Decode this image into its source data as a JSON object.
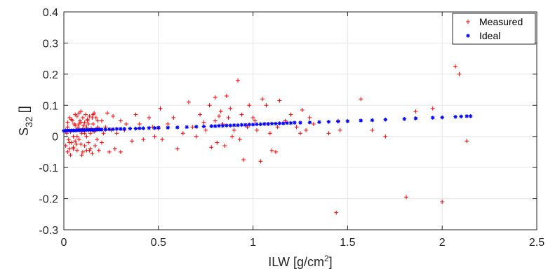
{
  "chart_data": {
    "type": "scatter",
    "title": "",
    "xlabel": {
      "main": "ILW [g/cm",
      "sup": "2",
      "tail": "]"
    },
    "ylabel": {
      "main": "S",
      "sub": "32",
      "tail": " []"
    },
    "xlim": [
      0,
      2.5
    ],
    "ylim": [
      -0.3,
      0.4
    ],
    "xticks": [
      0,
      0.5,
      1,
      1.5,
      2,
      2.5
    ],
    "yticks": [
      -0.3,
      -0.2,
      -0.1,
      0,
      0.1,
      0.2,
      0.3,
      0.4
    ],
    "xtick_labels": [
      "0",
      "0.5",
      "1",
      "1.5",
      "2",
      "2.5"
    ],
    "ytick_labels": [
      "-0.3",
      "-0.2",
      "-0.1",
      "0",
      "0.1",
      "0.2",
      "0.3",
      "0.4"
    ],
    "grid": true,
    "legend_position": "top-right",
    "series": [
      {
        "name": "Measured",
        "marker": "plus",
        "color": "#ff0000",
        "points": [
          [
            0.01,
            0.02
          ],
          [
            0.01,
            -0.03
          ],
          [
            0.015,
            0.01
          ],
          [
            0.02,
            -0.05
          ],
          [
            0.02,
            0.03
          ],
          [
            0.025,
            -0.01
          ],
          [
            0.03,
            0.06
          ],
          [
            0.03,
            -0.04
          ],
          [
            0.035,
            0.015
          ],
          [
            0.04,
            -0.02
          ],
          [
            0.045,
            0.05
          ],
          [
            0.05,
            0.0
          ],
          [
            0.05,
            -0.035
          ],
          [
            0.055,
            0.04
          ],
          [
            0.06,
            0.07
          ],
          [
            0.06,
            -0.015
          ],
          [
            0.065,
            0.02
          ],
          [
            0.07,
            0.065
          ],
          [
            0.07,
            -0.045
          ],
          [
            0.075,
            0.03
          ],
          [
            0.08,
            0.075
          ],
          [
            0.08,
            -0.01
          ],
          [
            0.085,
            0.05
          ],
          [
            0.09,
            0.08
          ],
          [
            0.09,
            -0.025
          ],
          [
            0.095,
            0.01
          ],
          [
            0.1,
            0.06
          ],
          [
            0.1,
            -0.05
          ],
          [
            0.105,
            0.035
          ],
          [
            0.11,
            0.045
          ],
          [
            0.11,
            -0.03
          ],
          [
            0.115,
            0.07
          ],
          [
            0.12,
            0.0
          ],
          [
            0.12,
            -0.045
          ],
          [
            0.125,
            0.05
          ],
          [
            0.13,
            0.02
          ],
          [
            0.13,
            -0.02
          ],
          [
            0.135,
            0.065
          ],
          [
            0.14,
            -0.04
          ],
          [
            0.145,
            0.025
          ],
          [
            0.15,
            -0.055
          ],
          [
            0.155,
            0.04
          ],
          [
            0.16,
            0.015
          ],
          [
            0.165,
            -0.03
          ],
          [
            0.17,
            0.06
          ],
          [
            0.175,
            -0.01
          ],
          [
            0.18,
            0.03
          ],
          [
            0.185,
            -0.045
          ],
          [
            0.02,
            0.045
          ],
          [
            0.04,
            0.055
          ],
          [
            0.06,
            0.035
          ],
          [
            0.08,
            0.04
          ],
          [
            0.1,
            0.025
          ],
          [
            0.12,
            0.03
          ],
          [
            0.14,
            0.01
          ],
          [
            0.03,
            -0.02
          ],
          [
            0.05,
            -0.04
          ],
          [
            0.07,
            0.0
          ],
          [
            0.09,
            0.045
          ],
          [
            0.11,
            0.01
          ],
          [
            0.13,
            0.04
          ],
          [
            0.15,
            0.06
          ],
          [
            0.17,
            0.02
          ],
          [
            0.2,
            0.05
          ],
          [
            0.2,
            -0.02
          ],
          [
            0.22,
            0.03
          ],
          [
            0.23,
            0.075
          ],
          [
            0.24,
            -0.05
          ],
          [
            0.25,
            0.02
          ],
          [
            0.26,
            0.065
          ],
          [
            0.27,
            -0.04
          ],
          [
            0.28,
            0.01
          ],
          [
            0.3,
            0.05
          ],
          [
            0.3,
            -0.05
          ],
          [
            0.32,
            0.02
          ],
          [
            0.36,
            -0.015
          ],
          [
            0.38,
            0.07
          ],
          [
            0.4,
            0.04
          ],
          [
            0.42,
            -0.01
          ],
          [
            0.45,
            0.06
          ],
          [
            0.47,
            0.03
          ],
          [
            0.5,
            0.025
          ],
          [
            0.51,
            0.09
          ],
          [
            0.52,
            -0.01
          ],
          [
            0.55,
            0.04
          ],
          [
            0.6,
            -0.04
          ],
          [
            0.63,
            0.01
          ],
          [
            0.66,
            0.11
          ],
          [
            0.68,
            0.03
          ],
          [
            0.7,
            0.0
          ],
          [
            0.72,
            0.07
          ],
          [
            0.75,
            0.02
          ],
          [
            0.77,
            0.1
          ],
          [
            0.78,
            -0.035
          ],
          [
            0.8,
            0.125
          ],
          [
            0.8,
            0.05
          ],
          [
            0.81,
            -0.02
          ],
          [
            0.82,
            0.065
          ],
          [
            0.83,
            0.08
          ],
          [
            0.84,
            0.04
          ],
          [
            0.85,
            -0.03
          ],
          [
            0.86,
            0.13
          ],
          [
            0.87,
            0.06
          ],
          [
            0.88,
            0.09
          ],
          [
            0.9,
            0.02
          ],
          [
            0.92,
            0.18
          ],
          [
            0.93,
            -0.01
          ],
          [
            0.94,
            0.07
          ],
          [
            0.95,
            -0.075
          ],
          [
            0.97,
            0.03
          ],
          [
            0.98,
            0.1
          ],
          [
            1.0,
            0.06
          ],
          [
            1.02,
            0.02
          ],
          [
            1.04,
            -0.08
          ],
          [
            1.05,
            0.12
          ],
          [
            1.07,
            0.1
          ],
          [
            1.08,
            0.04
          ],
          [
            1.09,
            0.01
          ],
          [
            1.1,
            -0.045
          ],
          [
            1.12,
            -0.05
          ],
          [
            1.14,
            0.115
          ],
          [
            1.17,
            0.05
          ],
          [
            1.2,
            0.07
          ],
          [
            1.23,
            0.03
          ],
          [
            1.26,
            0.085
          ],
          [
            1.28,
            0.02
          ],
          [
            1.3,
            0.06
          ],
          [
            1.32,
            0.04
          ],
          [
            1.4,
            0.01
          ],
          [
            1.44,
            -0.245
          ],
          [
            1.45,
            0.05
          ],
          [
            1.46,
            0.02
          ],
          [
            1.57,
            0.12
          ],
          [
            1.63,
            0.02
          ],
          [
            1.7,
            0.0
          ],
          [
            1.81,
            -0.195
          ],
          [
            1.86,
            0.08
          ],
          [
            1.95,
            0.09
          ],
          [
            2.0,
            -0.21
          ],
          [
            2.07,
            0.225
          ],
          [
            2.09,
            0.2
          ],
          [
            2.13,
            -0.015
          ],
          [
            0.16,
            0.075
          ],
          [
            0.18,
            0.05
          ],
          [
            0.21,
            0.01
          ],
          [
            0.33,
            0.04
          ],
          [
            0.48,
            0.0
          ],
          [
            0.58,
            0.06
          ],
          [
            0.74,
            0.045
          ],
          [
            0.89,
            0.0
          ],
          [
            1.01,
            0.05
          ],
          [
            1.13,
            0.03
          ],
          [
            1.25,
            0.01
          ],
          [
            0.035,
            -0.06
          ],
          [
            0.095,
            -0.06
          ],
          [
            0.135,
            -0.045
          ],
          [
            0.155,
            0.07
          ],
          [
            0.085,
            0.02
          ],
          [
            0.065,
            -0.025
          ],
          [
            0.125,
            0.055
          ]
        ]
      },
      {
        "name": "Ideal",
        "marker": "asterisk",
        "color": "#0000ff",
        "points": [
          [
            0.0,
            0.018
          ],
          [
            0.01,
            0.018
          ],
          [
            0.02,
            0.019
          ],
          [
            0.03,
            0.019
          ],
          [
            0.04,
            0.019
          ],
          [
            0.05,
            0.019
          ],
          [
            0.06,
            0.019
          ],
          [
            0.07,
            0.02
          ],
          [
            0.08,
            0.02
          ],
          [
            0.09,
            0.02
          ],
          [
            0.1,
            0.02
          ],
          [
            0.11,
            0.02
          ],
          [
            0.12,
            0.021
          ],
          [
            0.13,
            0.021
          ],
          [
            0.14,
            0.021
          ],
          [
            0.15,
            0.021
          ],
          [
            0.16,
            0.021
          ],
          [
            0.17,
            0.022
          ],
          [
            0.18,
            0.022
          ],
          [
            0.19,
            0.022
          ],
          [
            0.2,
            0.022
          ],
          [
            0.22,
            0.022
          ],
          [
            0.24,
            0.023
          ],
          [
            0.26,
            0.023
          ],
          [
            0.28,
            0.024
          ],
          [
            0.3,
            0.024
          ],
          [
            0.32,
            0.024
          ],
          [
            0.35,
            0.025
          ],
          [
            0.38,
            0.025
          ],
          [
            0.4,
            0.026
          ],
          [
            0.42,
            0.026
          ],
          [
            0.45,
            0.027
          ],
          [
            0.48,
            0.027
          ],
          [
            0.5,
            0.028
          ],
          [
            0.55,
            0.028
          ],
          [
            0.6,
            0.029
          ],
          [
            0.65,
            0.03
          ],
          [
            0.7,
            0.031
          ],
          [
            0.74,
            0.032
          ],
          [
            0.78,
            0.033
          ],
          [
            0.8,
            0.033
          ],
          [
            0.82,
            0.034
          ],
          [
            0.84,
            0.034
          ],
          [
            0.86,
            0.035
          ],
          [
            0.88,
            0.035
          ],
          [
            0.9,
            0.036
          ],
          [
            0.92,
            0.036
          ],
          [
            0.94,
            0.037
          ],
          [
            0.96,
            0.037
          ],
          [
            0.98,
            0.038
          ],
          [
            1.0,
            0.038
          ],
          [
            1.02,
            0.039
          ],
          [
            1.04,
            0.039
          ],
          [
            1.06,
            0.04
          ],
          [
            1.08,
            0.04
          ],
          [
            1.1,
            0.041
          ],
          [
            1.12,
            0.041
          ],
          [
            1.14,
            0.042
          ],
          [
            1.16,
            0.042
          ],
          [
            1.18,
            0.043
          ],
          [
            1.2,
            0.043
          ],
          [
            1.22,
            0.044
          ],
          [
            1.25,
            0.044
          ],
          [
            1.3,
            0.045
          ],
          [
            1.35,
            0.046
          ],
          [
            1.4,
            0.047
          ],
          [
            1.45,
            0.048
          ],
          [
            1.5,
            0.049
          ],
          [
            1.57,
            0.051
          ],
          [
            1.63,
            0.052
          ],
          [
            1.7,
            0.054
          ],
          [
            1.8,
            0.056
          ],
          [
            1.86,
            0.058
          ],
          [
            1.95,
            0.06
          ],
          [
            2.0,
            0.061
          ],
          [
            2.07,
            0.063
          ],
          [
            2.1,
            0.064
          ],
          [
            2.13,
            0.065
          ],
          [
            2.15,
            0.065
          ]
        ]
      }
    ]
  }
}
